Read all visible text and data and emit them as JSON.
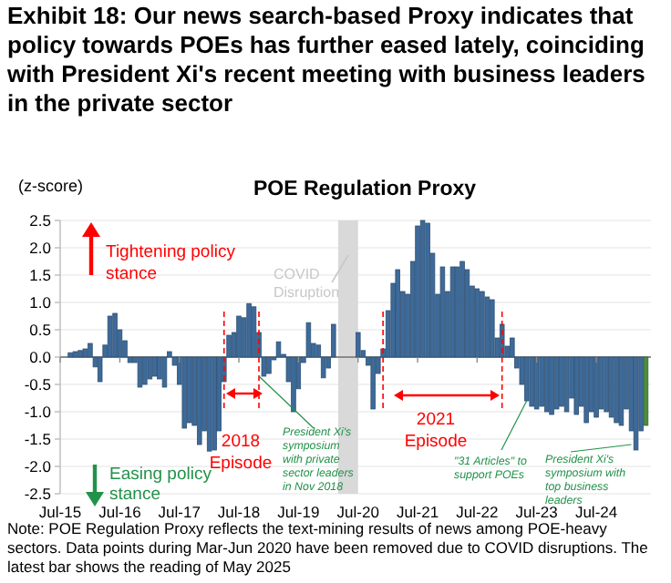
{
  "chart_data": {
    "type": "bar",
    "title": "Exhibit 18: Our news search-based Proxy indicates that policy towards POEs has further eased lately, coinciding with President Xi's recent meeting with business leaders in the private sector",
    "subtitle": "POE Regulation Proxy",
    "ylabel": "(z-score)",
    "x": [
      "2015-09",
      "2015-10",
      "2015-11",
      "2015-12",
      "2016-01",
      "2016-02",
      "2016-03",
      "2016-04",
      "2016-05",
      "2016-06",
      "2016-07",
      "2016-08",
      "2016-09",
      "2016-10",
      "2016-11",
      "2016-12",
      "2017-01",
      "2017-02",
      "2017-03",
      "2017-04",
      "2017-05",
      "2017-06",
      "2017-07",
      "2017-08",
      "2017-09",
      "2017-10",
      "2017-11",
      "2017-12",
      "2018-01",
      "2018-02",
      "2018-03",
      "2018-04",
      "2018-05",
      "2018-06",
      "2018-07",
      "2018-08",
      "2018-09",
      "2018-10",
      "2018-11",
      "2018-12",
      "2019-01",
      "2019-02",
      "2019-03",
      "2019-04",
      "2019-05",
      "2019-06",
      "2019-07",
      "2019-08",
      "2019-09",
      "2019-10",
      "2019-11",
      "2019-12",
      "2020-01",
      "2020-02",
      "2020-07",
      "2020-08",
      "2020-09",
      "2020-10",
      "2020-11",
      "2020-12",
      "2021-01",
      "2021-02",
      "2021-03",
      "2021-04",
      "2021-05",
      "2021-06",
      "2021-07",
      "2021-08",
      "2021-09",
      "2021-10",
      "2021-11",
      "2021-12",
      "2022-01",
      "2022-02",
      "2022-03",
      "2022-04",
      "2022-05",
      "2022-06",
      "2022-07",
      "2022-08",
      "2022-09",
      "2022-10",
      "2022-11",
      "2022-12",
      "2023-01",
      "2023-02",
      "2023-03",
      "2023-04",
      "2023-05",
      "2023-06",
      "2023-07",
      "2023-08",
      "2023-09",
      "2023-10",
      "2023-11",
      "2023-12",
      "2024-01",
      "2024-02",
      "2024-03",
      "2024-04",
      "2024-05",
      "2024-06",
      "2024-07",
      "2024-08",
      "2024-09",
      "2024-10",
      "2024-11",
      "2024-12",
      "2025-01",
      "2025-02",
      "2025-03",
      "2025-04",
      "2025-05"
    ],
    "values": [
      0.08,
      0.1,
      0.12,
      0.15,
      0.25,
      -0.18,
      -0.45,
      0.22,
      0.75,
      0.8,
      0.5,
      0.3,
      -0.1,
      -0.1,
      -0.55,
      -0.5,
      -0.4,
      -0.35,
      -0.4,
      -0.55,
      0.1,
      -0.15,
      -0.5,
      -1.3,
      -1.2,
      -1.25,
      -1.6,
      -1.35,
      -1.72,
      -1.7,
      -1.35,
      -0.45,
      0.4,
      0.45,
      0.75,
      0.72,
      0.98,
      0.92,
      0.45,
      -0.35,
      -0.3,
      -0.05,
      0.28,
      0.05,
      -0.45,
      -1.0,
      -0.58,
      -0.1,
      0.63,
      0.25,
      0.22,
      -0.38,
      -0.2,
      0.6,
      0.45,
      0.12,
      -0.15,
      -0.95,
      -0.3,
      0.15,
      0.85,
      1.35,
      1.6,
      1.2,
      1.15,
      1.75,
      2.4,
      2.5,
      2.45,
      1.9,
      1.15,
      1.65,
      1.2,
      1.65,
      1.65,
      1.75,
      1.6,
      1.3,
      1.25,
      1.2,
      1.1,
      1.05,
      0.35,
      0.6,
      0.2,
      0.35,
      -0.2,
      -0.5,
      -0.8,
      -0.9,
      -0.95,
      -0.9,
      -1.0,
      -1.05,
      -0.95,
      -0.9,
      -1.0,
      -0.75,
      -1.05,
      -0.9,
      -1.2,
      -1.0,
      -1.1,
      -0.95,
      -1.0,
      -1.1,
      -1.2,
      -1.25,
      -0.95,
      -1.35,
      -1.7,
      -1.35,
      -1.25
    ],
    "colors": [
      "#3d6a99",
      "#3d6a99",
      "#3d6a99",
      "#3d6a99",
      "#3d6a99",
      "#3d6a99",
      "#3d6a99",
      "#3d6a99",
      "#3d6a99",
      "#3d6a99",
      "#3d6a99",
      "#3d6a99",
      "#3d6a99",
      "#3d6a99",
      "#3d6a99",
      "#3d6a99",
      "#3d6a99",
      "#3d6a99",
      "#3d6a99",
      "#3d6a99",
      "#3d6a99",
      "#3d6a99",
      "#3d6a99",
      "#3d6a99",
      "#3d6a99",
      "#3d6a99",
      "#3d6a99",
      "#3d6a99",
      "#3d6a99",
      "#3d6a99",
      "#3d6a99",
      "#3d6a99",
      "#3d6a99",
      "#3d6a99",
      "#3d6a99",
      "#3d6a99",
      "#3d6a99",
      "#3d6a99",
      "#3d6a99",
      "#3d6a99",
      "#3d6a99",
      "#3d6a99",
      "#3d6a99",
      "#3d6a99",
      "#3d6a99",
      "#3d6a99",
      "#3d6a99",
      "#3d6a99",
      "#3d6a99",
      "#3d6a99",
      "#3d6a99",
      "#3d6a99",
      "#3d6a99",
      "#3d6a99",
      "#3d6a99",
      "#3d6a99",
      "#3d6a99",
      "#3d6a99",
      "#3d6a99",
      "#3d6a99",
      "#3d6a99",
      "#3d6a99",
      "#3d6a99",
      "#3d6a99",
      "#3d6a99",
      "#3d6a99",
      "#3d6a99",
      "#3d6a99",
      "#3d6a99",
      "#3d6a99",
      "#3d6a99",
      "#3d6a99",
      "#3d6a99",
      "#3d6a99",
      "#3d6a99",
      "#3d6a99",
      "#3d6a99",
      "#3d6a99",
      "#3d6a99",
      "#3d6a99",
      "#3d6a99",
      "#3d6a99",
      "#3d6a99",
      "#3d6a99",
      "#3d6a99",
      "#3d6a99",
      "#3d6a99",
      "#3d6a99",
      "#3d6a99",
      "#3d6a99",
      "#3d6a99",
      "#3d6a99",
      "#3d6a99",
      "#3d6a99",
      "#3d6a99",
      "#3d6a99",
      "#3d6a99",
      "#3d6a99",
      "#3d6a99",
      "#3d6a99",
      "#3d6a99",
      "#3d6a99",
      "#3d6a99",
      "#3d6a99",
      "#3d6a99",
      "#3d6a99",
      "#3d6a99",
      "#3d6a99",
      "#3d6a99",
      "#3d6a99",
      "#3d6a99",
      "#3d6a99",
      "#4a8c3f"
    ],
    "xlim": [
      "2015-07",
      "2025-06"
    ],
    "xticks": [
      {
        "value": "2015-07",
        "label": "Jul-15"
      },
      {
        "value": "2016-07",
        "label": "Jul-16"
      },
      {
        "value": "2017-07",
        "label": "Jul-17"
      },
      {
        "value": "2018-07",
        "label": "Jul-18"
      },
      {
        "value": "2019-07",
        "label": "Jul-19"
      },
      {
        "value": "2020-07",
        "label": "Jul-20"
      },
      {
        "value": "2021-07",
        "label": "Jul-21"
      },
      {
        "value": "2022-07",
        "label": "Jul-22"
      },
      {
        "value": "2023-07",
        "label": "Jul-23"
      },
      {
        "value": "2024-07",
        "label": "Jul-24"
      }
    ],
    "ylim": [
      -2.5,
      2.5
    ],
    "yticks": [
      {
        "value": -2.5,
        "label": "-2.5"
      },
      {
        "value": -2,
        "label": "-2.0"
      },
      {
        "value": -1.5,
        "label": "-1.5"
      },
      {
        "value": -1,
        "label": "-1.0"
      },
      {
        "value": -0.5,
        "label": "-0.5"
      },
      {
        "value": 0,
        "label": "0.0"
      },
      {
        "value": 0.5,
        "label": "0.5"
      },
      {
        "value": 1,
        "label": "1.0"
      },
      {
        "value": 1.5,
        "label": "1.5"
      },
      {
        "value": 2,
        "label": "2.0"
      },
      {
        "value": 2.5,
        "label": "2.5"
      }
    ],
    "grid": "y",
    "bands": [
      {
        "axis": "x",
        "from": "2020-03",
        "to": "2020-07",
        "color": "#d9d9d9"
      }
    ],
    "ref_lines": [
      {
        "axis": "x",
        "value": "2018-04",
        "color": "#ff0000",
        "line_style": "dashed"
      },
      {
        "axis": "x",
        "value": "2018-11",
        "color": "#ff0000",
        "line_style": "dashed"
      },
      {
        "axis": "x",
        "value": "2020-12",
        "color": "#ff0000",
        "line_style": "dashed"
      },
      {
        "axis": "x",
        "value": "2022-12",
        "color": "#ff0000",
        "line_style": "dashed"
      }
    ],
    "annotations": [
      "Tightening policy stance",
      "Easing policy stance",
      "COVID Disruption",
      "2018 Episode",
      {
        "text": "President Xi's symposium with private sector leaders in Nov 2018",
        "x": "2018-11",
        "y": -0.35
      },
      "2021 Episode",
      {
        "text": "\"31 Articles\" to support POEs",
        "x": "2023-05",
        "y": -0.8
      },
      {
        "text": "President Xi's symposium with top business leaders",
        "x": "2025-02",
        "y": -1.6
      },
      "Note: POE Regulation Proxy reflects the text-mining results of news among POE-heavy sectors. Data points during Mar-Jun 2020 have been removed due to COVID disruptions. The latest bar shows the reading of May 2025"
    ]
  }
}
